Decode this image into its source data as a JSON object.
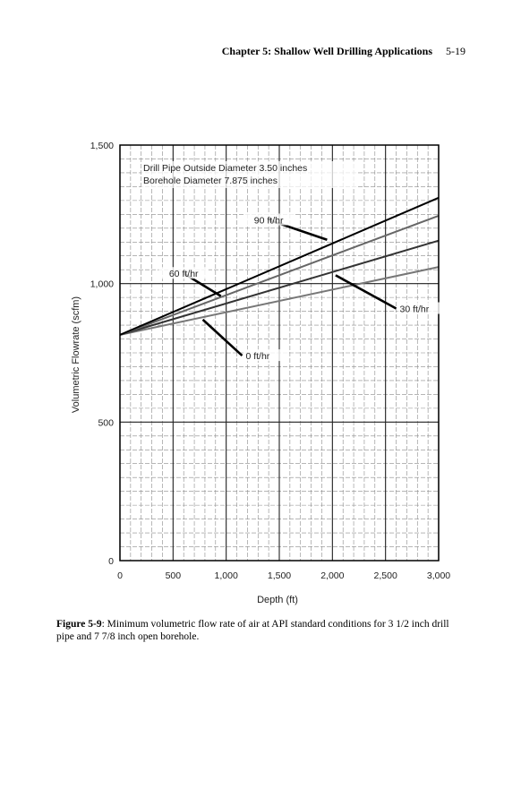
{
  "header": {
    "chapter_title": "Chapter 5: Shallow Well Drilling Applications",
    "page_number": "5-19"
  },
  "chart_data": {
    "type": "line",
    "xlabel": "Depth (ft)",
    "ylabel": "Volumetric Flowrate (scfm)",
    "xlim": [
      0,
      3000
    ],
    "ylim": [
      0,
      1500
    ],
    "x_ticks": [
      0,
      500,
      1000,
      1500,
      2000,
      2500,
      3000
    ],
    "x_tick_labels": [
      "0",
      "500",
      "1,000",
      "1,500",
      "2,000",
      "2,500",
      "3,000"
    ],
    "y_ticks": [
      0,
      500,
      1000,
      1500
    ],
    "y_tick_labels": [
      "0",
      "500",
      "1,000",
      "1,500"
    ],
    "grid": true,
    "annotations": [
      "Drill Pipe Outside Diameter 3.50 inches",
      "Borehole Diameter 7.875 inches"
    ],
    "series": [
      {
        "name": "0 ft/hr",
        "x": [
          0,
          3000
        ],
        "y": [
          815,
          1060
        ],
        "color": "#777777"
      },
      {
        "name": "30 ft/hr",
        "x": [
          0,
          3000
        ],
        "y": [
          815,
          1155
        ],
        "color": "#333333"
      },
      {
        "name": "60 ft/hr",
        "x": [
          0,
          3000
        ],
        "y": [
          815,
          1245
        ],
        "color": "#666666"
      },
      {
        "name": "90 ft/hr",
        "x": [
          0,
          3000
        ],
        "y": [
          815,
          1310
        ],
        "color": "#000000"
      }
    ]
  },
  "caption": {
    "figure_label": "Figure 5-9",
    "text": ": Minimum volumetric flow rate of air at API standard conditions for 3 1/2 inch drill pipe and 7 7/8 inch open borehole."
  }
}
